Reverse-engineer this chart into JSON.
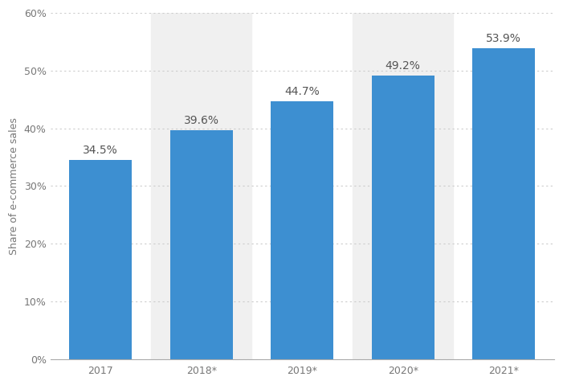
{
  "categories": [
    "2017",
    "2018*",
    "2019*",
    "2020*",
    "2021*"
  ],
  "values": [
    34.5,
    39.6,
    44.7,
    49.2,
    53.9
  ],
  "bar_color": "#3d8fd1",
  "bar_labels": [
    "34.5%",
    "39.6%",
    "44.7%",
    "49.2%",
    "53.9%"
  ],
  "ylabel": "Share of e-commerce sales",
  "ylim": [
    0,
    60
  ],
  "yticks": [
    0,
    10,
    20,
    30,
    40,
    50,
    60
  ],
  "ytick_labels": [
    "0%",
    "10%",
    "20%",
    "30%",
    "40%",
    "50%",
    "60%"
  ],
  "background_color": "#ffffff",
  "shaded_bars": [
    1,
    3
  ],
  "shaded_color": "#f0f0f0",
  "grid_color": "#cccccc",
  "bar_label_color": "#555555",
  "bar_label_fontsize": 10,
  "ylabel_fontsize": 9,
  "tick_label_fontsize": 9,
  "bar_width": 0.62
}
